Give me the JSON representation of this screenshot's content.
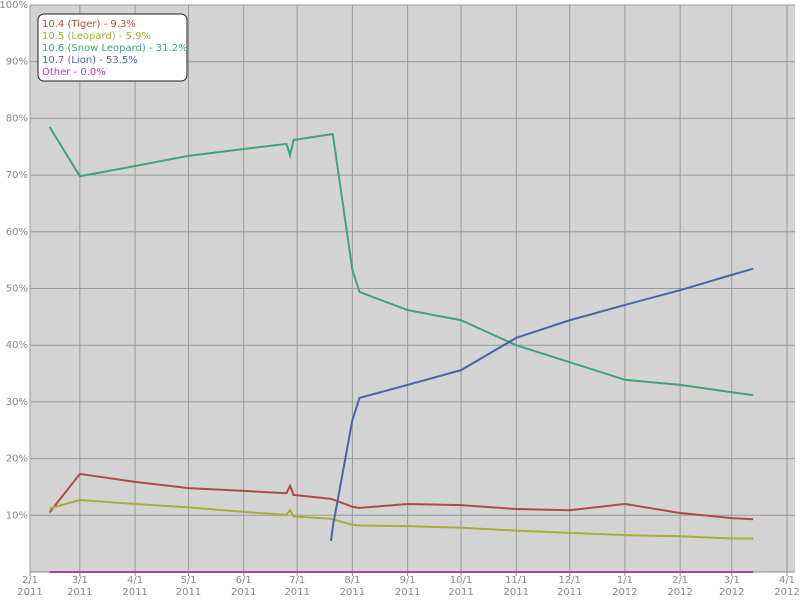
{
  "chart_data": {
    "type": "line",
    "x": [
      "2011-02-12",
      "2011-03-01",
      "2011-04-01",
      "2011-05-01",
      "2011-06-01",
      "2011-06-25",
      "2011-06-27",
      "2011-06-29",
      "2011-07-20",
      "2011-07-21",
      "2011-08-01",
      "2011-08-05",
      "2011-09-01",
      "2011-10-01",
      "2011-11-01",
      "2011-12-01",
      "2012-01-01",
      "2012-02-01",
      "2012-03-01",
      "2012-03-13"
    ],
    "series": [
      {
        "name": "10.4 (Tiger) - 9.3%",
        "color": "#b04a4a",
        "values": [
          10.5,
          17.3,
          15.9,
          14.8,
          14.3,
          13.9,
          15.2,
          13.6,
          12.9,
          12.8,
          11.5,
          11.3,
          12.0,
          11.8,
          11.1,
          10.9,
          12.0,
          10.4,
          9.5,
          9.3
        ]
      },
      {
        "name": "10.5 (Leopard) - 5.9%",
        "color": "#a8ad3a",
        "values": [
          11.2,
          12.7,
          12.0,
          11.4,
          10.6,
          10.1,
          10.9,
          9.8,
          9.4,
          9.3,
          8.3,
          8.2,
          8.1,
          7.8,
          7.3,
          6.9,
          6.5,
          6.3,
          5.9,
          5.9
        ]
      },
      {
        "name": "10.6 (Snow Leopard) - 31.2%",
        "color": "#3fa37a",
        "values": [
          78.5,
          69.8,
          71.6,
          73.4,
          74.6,
          75.5,
          73.5,
          76.2,
          77.2,
          77.2,
          53.3,
          49.4,
          46.2,
          44.4,
          40.0,
          37.0,
          33.9,
          33.0,
          31.7,
          31.2
        ]
      },
      {
        "name": "10.7 (Lion) - 53.5%",
        "color": "#4a64a8",
        "values": [
          null,
          null,
          null,
          null,
          null,
          null,
          null,
          null,
          5.5,
          8.0,
          26.8,
          30.7,
          33.0,
          35.6,
          41.3,
          44.4,
          47.1,
          49.7,
          52.4,
          53.5
        ]
      },
      {
        "name": "Other - 0.0%",
        "color": "#b040a8",
        "values": [
          0,
          0,
          0,
          0,
          0,
          0,
          0,
          0,
          0,
          0,
          0,
          0,
          0,
          0,
          0,
          0,
          0,
          0,
          0,
          0
        ]
      }
    ],
    "xlim": [
      "2011-02-01",
      "2012-04-01"
    ],
    "xticks": [
      {
        "value": "2011-02-01",
        "label": "2/1\n2011"
      },
      {
        "value": "2011-03-01",
        "label": "3/1\n2011"
      },
      {
        "value": "2011-04-01",
        "label": "4/1\n2011"
      },
      {
        "value": "2011-05-01",
        "label": "5/1\n2011"
      },
      {
        "value": "2011-06-01",
        "label": "6/1\n2011"
      },
      {
        "value": "2011-07-01",
        "label": "7/1\n2011"
      },
      {
        "value": "2011-08-01",
        "label": "8/1\n2011"
      },
      {
        "value": "2011-09-01",
        "label": "9/1\n2011"
      },
      {
        "value": "2011-10-01",
        "label": "10/1\n2011"
      },
      {
        "value": "2011-11-01",
        "label": "11/1\n2011"
      },
      {
        "value": "2011-12-01",
        "label": "12/1\n2011"
      },
      {
        "value": "2012-01-01",
        "label": "1/1\n2012"
      },
      {
        "value": "2012-02-01",
        "label": "2/1\n2012"
      },
      {
        "value": "2012-03-01",
        "label": "3/1\n2012"
      },
      {
        "value": "2012-04-01",
        "label": "4/1\n2012"
      }
    ],
    "ylim": [
      0,
      100
    ],
    "yticks": [
      {
        "value": 10,
        "label": "10%"
      },
      {
        "value": 20,
        "label": "20%"
      },
      {
        "value": 30,
        "label": "30%"
      },
      {
        "value": 40,
        "label": "40%"
      },
      {
        "value": 50,
        "label": "50%"
      },
      {
        "value": 60,
        "label": "60%"
      },
      {
        "value": 70,
        "label": "70%"
      },
      {
        "value": 80,
        "label": "80%"
      },
      {
        "value": 90,
        "label": "90%"
      },
      {
        "value": 100,
        "label": "100%"
      }
    ],
    "grid": true,
    "legend": "upper left"
  }
}
